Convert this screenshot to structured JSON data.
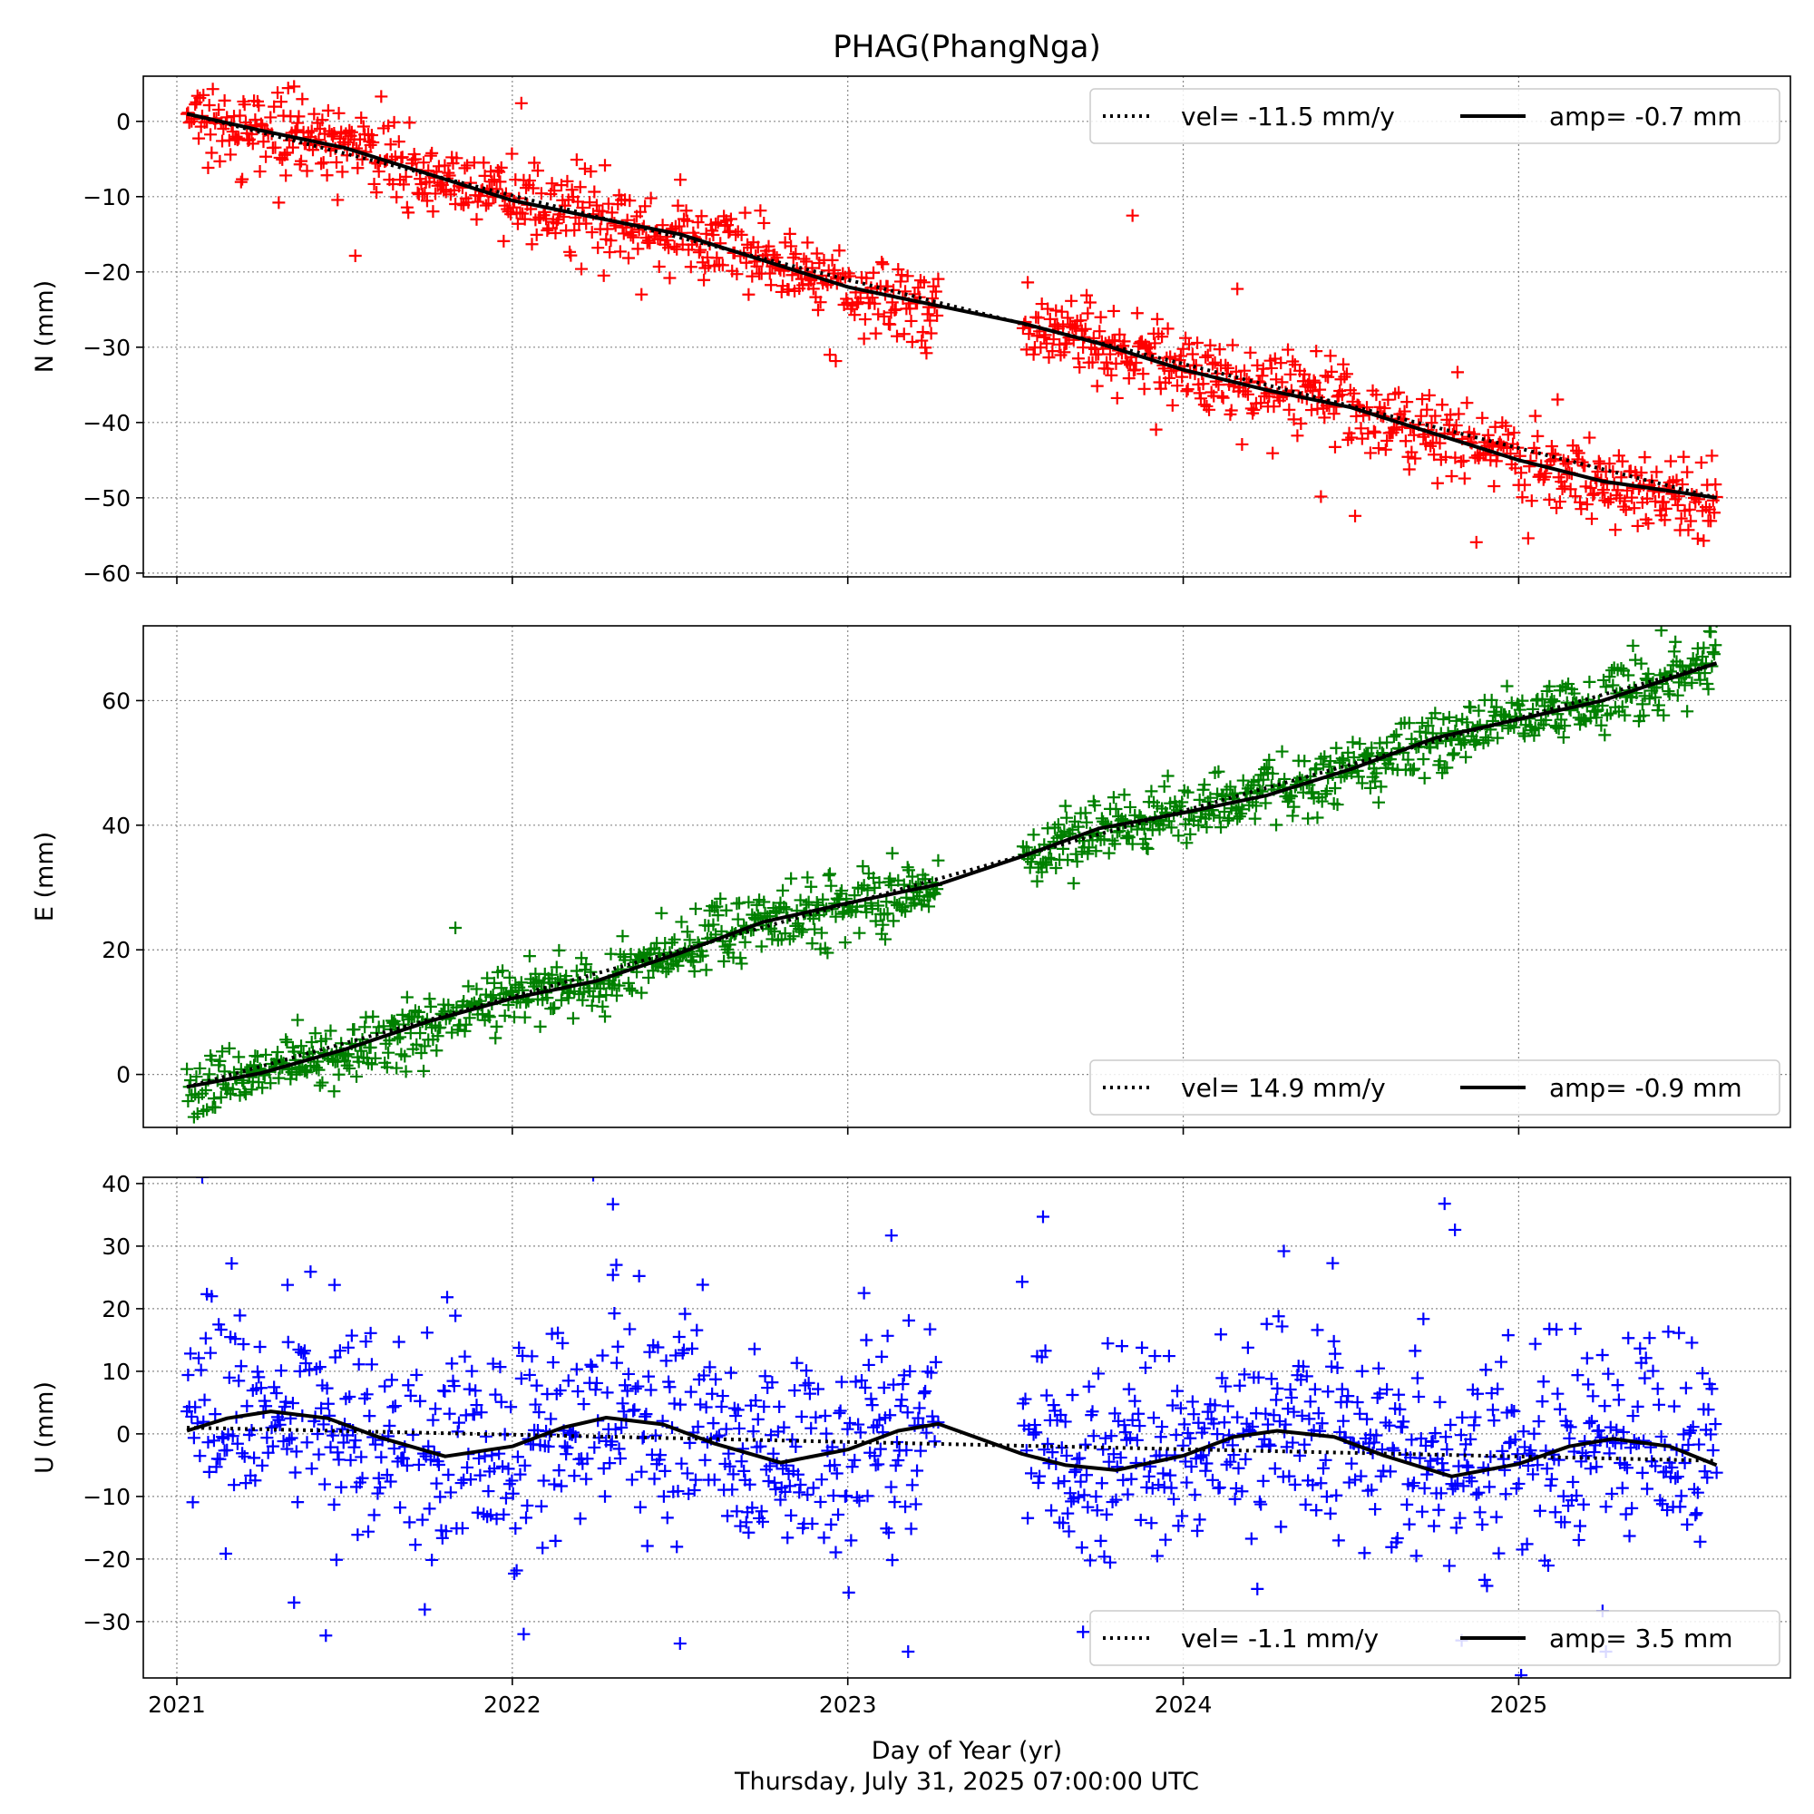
{
  "figure": {
    "title": "PHAG(PhangNga)",
    "xlabel": "Day of Year (yr)",
    "footer": "Thursday, July 31, 2025 07:00:00 UTC"
  },
  "chart_data": [
    {
      "type": "scatter",
      "panel": "N",
      "ylabel": "N (mm)",
      "xlim": [
        2020.9,
        2025.81
      ],
      "ylim": [
        -60.5,
        6
      ],
      "yticks": [
        0,
        -10,
        -20,
        -30,
        -40,
        -50,
        -60
      ],
      "yticklabels": [
        "0",
        "−10",
        "−20",
        "−30",
        "−40",
        "−50",
        "−60"
      ],
      "xticks": [
        2021,
        2022,
        2023,
        2024,
        2025
      ],
      "xticklabels_visible": false,
      "marker_color": "#ff0000",
      "legend": {
        "position": "upper right",
        "vel_label": "vel= -11.5 mm/y",
        "amp_label": "amp= -0.7 mm"
      },
      "velocity_mm_per_yr": -11.5,
      "seasonal_amplitude_mm": -0.7,
      "data_gap": [
        2023.27,
        2023.52
      ],
      "observation_span": [
        2021.03,
        2025.59
      ],
      "trend_line": {
        "x": [
          2021.03,
          2025.59
        ],
        "y": [
          1.0,
          -50.0
        ]
      },
      "fit_curve": {
        "x": [
          2021.03,
          2021.25,
          2021.5,
          2021.75,
          2022.0,
          2022.25,
          2022.5,
          2022.75,
          2023.0,
          2023.27,
          2023.52,
          2023.75,
          2024.0,
          2024.25,
          2024.5,
          2024.75,
          2025.0,
          2025.25,
          2025.59
        ],
        "y": [
          1.0,
          -1.2,
          -3.5,
          -7.0,
          -10.5,
          -12.8,
          -15.0,
          -18.5,
          -22.0,
          -24.5,
          -26.8,
          -29.5,
          -33.0,
          -35.7,
          -38.0,
          -41.5,
          -45.0,
          -47.8,
          -50.0
        ]
      },
      "scatter_params": {
        "noise_sd": 2.6,
        "outlier_rate": 0.012,
        "n_points": 1300
      }
    },
    {
      "type": "scatter",
      "panel": "E",
      "ylabel": "E (mm)",
      "xlim": [
        2020.9,
        2025.81
      ],
      "ylim": [
        -8.5,
        72
      ],
      "yticks": [
        0,
        20,
        40,
        60
      ],
      "yticklabels": [
        "0",
        "20",
        "40",
        "60"
      ],
      "xticks": [
        2021,
        2022,
        2023,
        2024,
        2025
      ],
      "xticklabels_visible": false,
      "marker_color": "#008000",
      "legend": {
        "position": "lower right",
        "vel_label": "vel= 14.9 mm/y",
        "amp_label": "amp= -0.9 mm"
      },
      "velocity_mm_per_yr": 14.9,
      "seasonal_amplitude_mm": -0.9,
      "data_gap": [
        2023.27,
        2023.52
      ],
      "observation_span": [
        2021.03,
        2025.59
      ],
      "trend_line": {
        "x": [
          2021.03,
          2025.59
        ],
        "y": [
          -2.0,
          66.0
        ]
      },
      "fit_curve": {
        "x": [
          2021.03,
          2021.25,
          2021.5,
          2021.75,
          2022.0,
          2022.25,
          2022.5,
          2022.75,
          2023.0,
          2023.27,
          2023.52,
          2023.75,
          2024.0,
          2024.25,
          2024.5,
          2024.75,
          2025.0,
          2025.25,
          2025.59
        ],
        "y": [
          -2.0,
          0.2,
          4.0,
          8.5,
          12.2,
          15.0,
          19.5,
          24.5,
          27.5,
          30.5,
          35.0,
          39.5,
          42.0,
          44.8,
          49.0,
          54.0,
          57.0,
          60.0,
          66.0
        ]
      },
      "scatter_params": {
        "noise_sd": 2.5,
        "outlier_rate": 0.01,
        "n_points": 1300
      }
    },
    {
      "type": "scatter",
      "panel": "U",
      "ylabel": "U (mm)",
      "xlim": [
        2020.9,
        2025.81
      ],
      "ylim": [
        -39,
        41
      ],
      "yticks": [
        40,
        30,
        20,
        10,
        0,
        -10,
        -20,
        -30
      ],
      "yticklabels": [
        "40",
        "30",
        "20",
        "10",
        "0",
        "−10",
        "−20",
        "−30"
      ],
      "xticks": [
        2021,
        2022,
        2023,
        2024,
        2025
      ],
      "xticklabels": [
        "2021",
        "2022",
        "2023",
        "2024",
        "2025"
      ],
      "xticklabels_visible": true,
      "marker_color": "#0000ff",
      "legend": {
        "position": "lower right",
        "vel_label": "vel= -1.1 mm/y",
        "amp_label": "amp= 3.5 mm"
      },
      "velocity_mm_per_yr": -1.1,
      "seasonal_amplitude_mm": 3.5,
      "data_gap": [
        2023.27,
        2023.52
      ],
      "observation_span": [
        2021.03,
        2025.59
      ],
      "trend_line": {
        "x": [
          2021.03,
          2025.59
        ],
        "y": [
          1.0,
          -4.3
        ]
      },
      "fit_curve": {
        "x": [
          2021.03,
          2021.15,
          2021.28,
          2021.45,
          2021.6,
          2021.8,
          2022.0,
          2022.15,
          2022.28,
          2022.45,
          2022.6,
          2022.8,
          2023.0,
          2023.15,
          2023.27,
          2023.52,
          2023.65,
          2023.8,
          2024.0,
          2024.15,
          2024.28,
          2024.45,
          2024.6,
          2024.8,
          2025.0,
          2025.15,
          2025.28,
          2025.45,
          2025.59
        ],
        "y": [
          0.5,
          2.5,
          3.6,
          2.5,
          -0.5,
          -3.6,
          -2.0,
          1.0,
          2.6,
          1.5,
          -1.5,
          -4.6,
          -2.5,
          0.5,
          1.6,
          -3.2,
          -5.0,
          -5.8,
          -3.5,
          -0.5,
          0.5,
          -0.5,
          -3.5,
          -6.8,
          -4.8,
          -2.0,
          -0.8,
          -2.0,
          -5.0
        ]
      },
      "scatter_params": {
        "noise_sd": 8.0,
        "outlier_rate": 0.02,
        "n_points": 1300
      },
      "notable_points": [
        {
          "x": 2022.3,
          "y": 36.7
        },
        {
          "x": 2022.31,
          "y": 27.0
        },
        {
          "x": 2022.3,
          "y": 25.4
        },
        {
          "x": 2023.13,
          "y": 31.7
        },
        {
          "x": 2024.3,
          "y": 29.2
        },
        {
          "x": 2024.81,
          "y": 32.6
        },
        {
          "x": 2021.33,
          "y": 23.8
        },
        {
          "x": 2021.47,
          "y": 23.8
        },
        {
          "x": 2023.52,
          "y": 24.3
        },
        {
          "x": 2022.5,
          "y": -33.5
        },
        {
          "x": 2023.18,
          "y": -34.8
        },
        {
          "x": 2025.26,
          "y": -34.8
        },
        {
          "x": 2025.25,
          "y": -28.3
        },
        {
          "x": 2024.83,
          "y": -33.0
        }
      ]
    }
  ]
}
